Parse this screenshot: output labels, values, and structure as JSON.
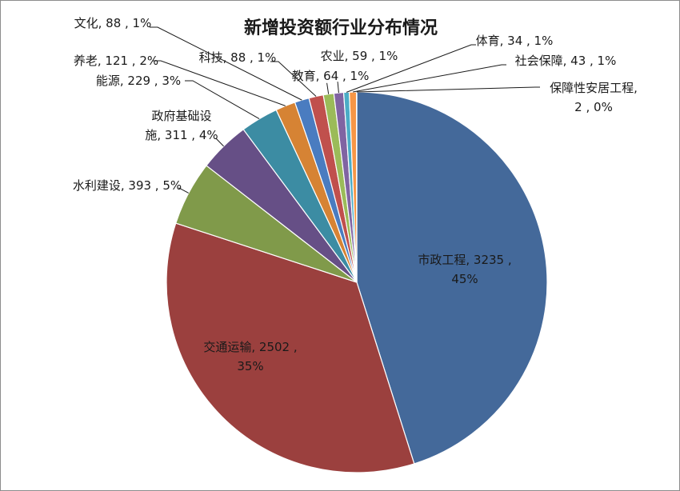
{
  "chart_data": {
    "type": "pie",
    "title": "新增投资额行业分布情况",
    "slices": [
      {
        "label": "市政工程",
        "value": 3235,
        "percent": "45%",
        "color": "#44699A"
      },
      {
        "label": "交通运输",
        "value": 2502,
        "percent": "35%",
        "color": "#9B403E"
      },
      {
        "label": "水利建设",
        "value": 393,
        "percent": "5%",
        "color": "#809A4A"
      },
      {
        "label": "政府基础设施",
        "value": 311,
        "percent": "4%",
        "color": "#664F86"
      },
      {
        "label": "能源",
        "value": 229,
        "percent": "3%",
        "color": "#3C8CA3"
      },
      {
        "label": "养老",
        "value": 121,
        "percent": "2%",
        "color": "#D68334"
      },
      {
        "label": "文化",
        "value": 88,
        "percent": "1%",
        "color": "#4A7CC0"
      },
      {
        "label": "科技",
        "value": 88,
        "percent": "1%",
        "color": "#C0504D"
      },
      {
        "label": "教育",
        "value": 64,
        "percent": "1%",
        "color": "#9BBB59"
      },
      {
        "label": "农业",
        "value": 59,
        "percent": "1%",
        "color": "#8064A2"
      },
      {
        "label": "体育",
        "value": 34,
        "percent": "1%",
        "color": "#4BACC6"
      },
      {
        "label": "社会保障",
        "value": 43,
        "percent": "1%",
        "color": "#F79646"
      },
      {
        "label": "保障性安居工程",
        "value": 2,
        "percent": "0%",
        "color": "#2C4D75"
      }
    ],
    "legend": "none"
  }
}
